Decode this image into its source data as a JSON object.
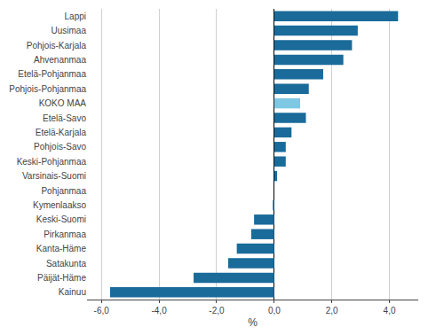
{
  "chart_data": {
    "type": "bar",
    "orientation": "horizontal",
    "categories": [
      "Lappi",
      "Uusimaa",
      "Pohjois-Karjala",
      "Ahvenanmaa",
      "Etelä-Pohjanmaa",
      "Pohjois-Pohjanmaa",
      "KOKO MAA",
      "Etelä-Savo",
      "Etelä-Karjala",
      "Pohjois-Savo",
      "Keski-Pohjanmaa",
      "Varsinais-Suomi",
      "Pohjanmaa",
      "Kymenlaakso",
      "Keski-Suomi",
      "Pirkanmaa",
      "Kanta-Häme",
      "Satakunta",
      "Päijät-Häme",
      "Kainuu"
    ],
    "values": [
      4.3,
      2.9,
      2.7,
      2.4,
      1.7,
      1.2,
      0.9,
      1.1,
      0.6,
      0.4,
      0.4,
      0.1,
      0.0,
      -0.05,
      -0.7,
      -0.8,
      -1.3,
      -1.6,
      -2.8,
      -5.7
    ],
    "colors": [
      "#1a6b9a",
      "#1a6b9a",
      "#1a6b9a",
      "#1a6b9a",
      "#1a6b9a",
      "#1a6b9a",
      "#7ec8e3",
      "#1a6b9a",
      "#1a6b9a",
      "#1a6b9a",
      "#1a6b9a",
      "#1a6b9a",
      "#1a6b9a",
      "#1a6b9a",
      "#1a6b9a",
      "#1a6b9a",
      "#1a6b9a",
      "#1a6b9a",
      "#1a6b9a",
      "#1a6b9a"
    ],
    "xlim": [
      -6.5,
      5.0
    ],
    "xticks": [
      {
        "value": -6.0,
        "label": "-6,0"
      },
      {
        "value": -4.0,
        "label": "-4,0"
      },
      {
        "value": -2.0,
        "label": "-2,0"
      },
      {
        "value": 0.0,
        "label": "0,0"
      },
      {
        "value": 2.0,
        "label": "2,0"
      },
      {
        "value": 4.0,
        "label": "4,0"
      }
    ],
    "xlabel": "%",
    "grid": true
  }
}
